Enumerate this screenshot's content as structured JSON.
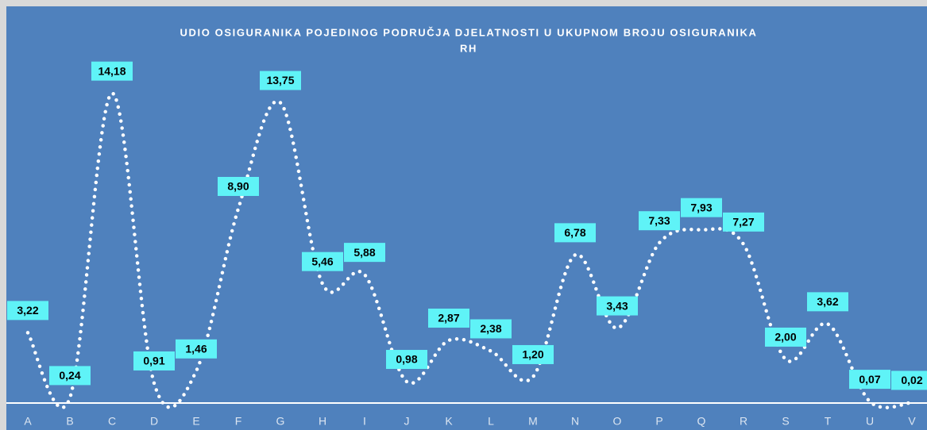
{
  "chart_data": {
    "type": "line",
    "title": "UDIO OSIGURANIKA POJEDINOG PODRUČJA DJELATNOSTI U UKUPNOM BROJU OSIGURANIKA",
    "subtitle": "RH",
    "categories": [
      "A",
      "B",
      "C",
      "D",
      "E",
      "F",
      "G",
      "H",
      "I",
      "J",
      "K",
      "L",
      "M",
      "N",
      "O",
      "P",
      "Q",
      "R",
      "S",
      "T",
      "U",
      "V"
    ],
    "values": [
      3.22,
      0.24,
      14.18,
      0.91,
      1.46,
      8.9,
      13.75,
      5.46,
      5.88,
      0.98,
      2.87,
      2.38,
      1.2,
      6.78,
      3.43,
      7.33,
      7.93,
      7.27,
      2.0,
      3.62,
      0.07,
      0.02
    ],
    "value_labels": [
      "3,22",
      "0,24",
      "14,18",
      "0,91",
      "1,46",
      "8,90",
      "13,75",
      "5,46",
      "5,88",
      "0,98",
      "2,87",
      "2,38",
      "1,20",
      "6,78",
      "3,43",
      "7,33",
      "7,93",
      "7,27",
      "2,00",
      "3,62",
      "0,07",
      "0,02"
    ],
    "color": "#ffffff",
    "ylim": [
      0,
      17
    ]
  }
}
